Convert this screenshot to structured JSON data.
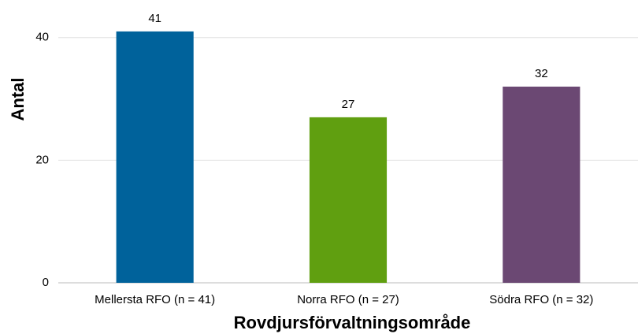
{
  "chart_data": {
    "type": "bar",
    "categories": [
      "Mellersta RFO (n = 41)",
      "Norra RFO (n = 27)",
      "Södra RFO (n = 32)"
    ],
    "values": [
      41,
      27,
      32
    ],
    "colors": [
      "#00629b",
      "#609f10",
      "#6b4873"
    ],
    "ylabel": "Antal",
    "xlabel": "Rovdjursförvaltningsområde",
    "ylim": [
      0,
      46
    ],
    "yticks": [
      0,
      20,
      40
    ],
    "grid": true
  }
}
